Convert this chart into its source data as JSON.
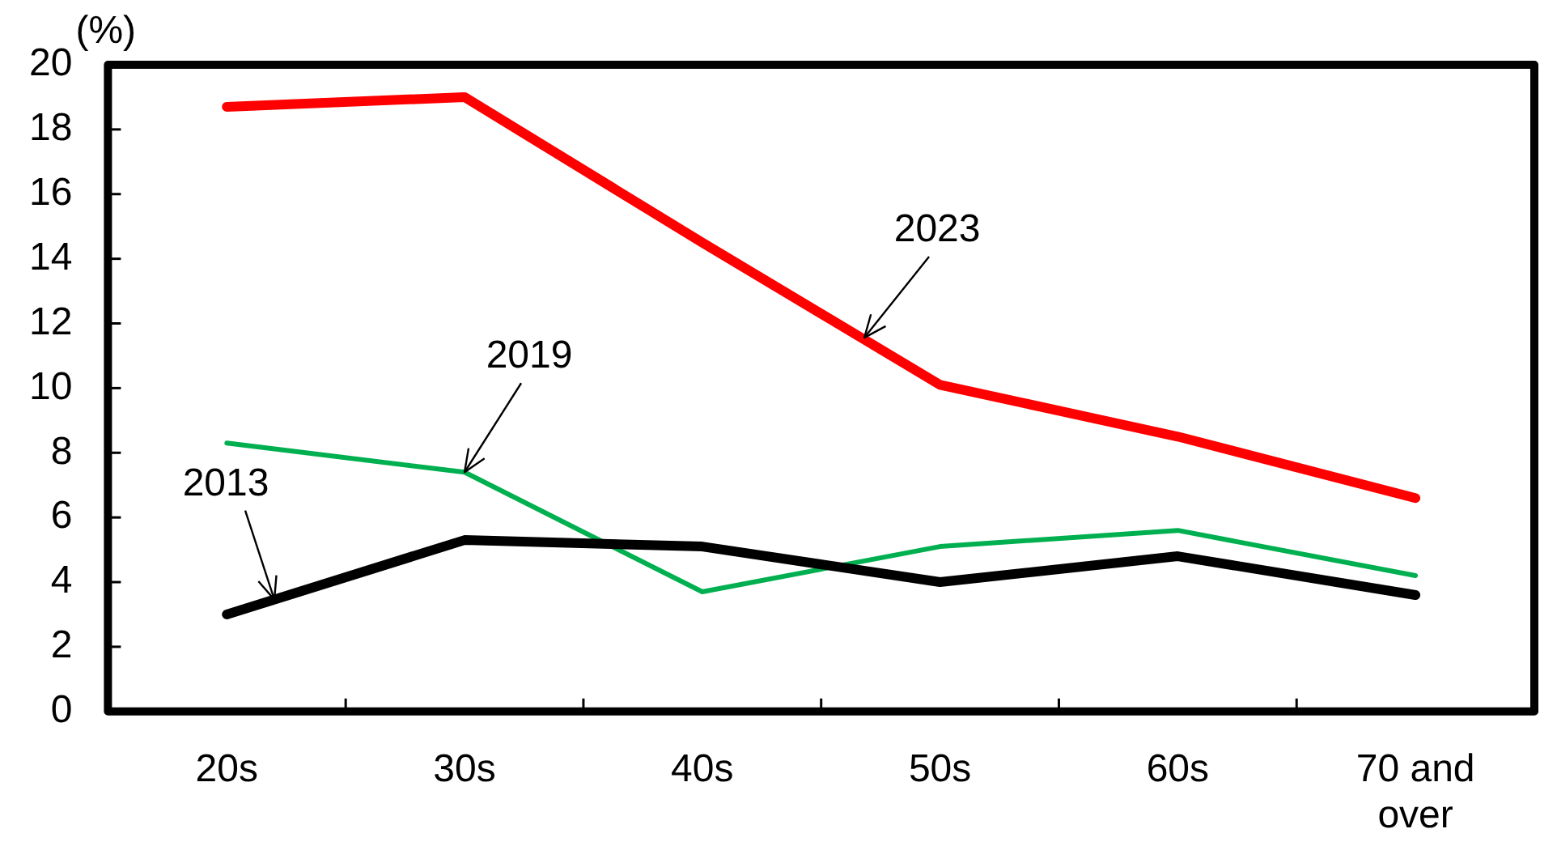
{
  "chart_data": {
    "type": "line",
    "ylabel": "(%)",
    "categories": [
      "20s",
      "30s",
      "40s",
      "50s",
      "60s",
      "70 and over"
    ],
    "series": [
      {
        "name": "2013",
        "color": "#000000",
        "values": [
          3.0,
          5.3,
          5.1,
          4.0,
          4.8,
          3.6
        ]
      },
      {
        "name": "2019",
        "color": "#00b050",
        "values": [
          8.3,
          7.4,
          3.7,
          5.1,
          5.6,
          4.2
        ]
      },
      {
        "name": "2023",
        "color": "#ff0000",
        "values": [
          18.7,
          19.0,
          14.5,
          10.1,
          8.5,
          6.6
        ]
      }
    ],
    "ylim": [
      0,
      20
    ],
    "yticks": [
      0,
      2,
      4,
      6,
      8,
      10,
      12,
      14,
      16,
      18,
      20
    ],
    "grid": false,
    "legend": false,
    "marker": "none",
    "line_style": "solid"
  }
}
